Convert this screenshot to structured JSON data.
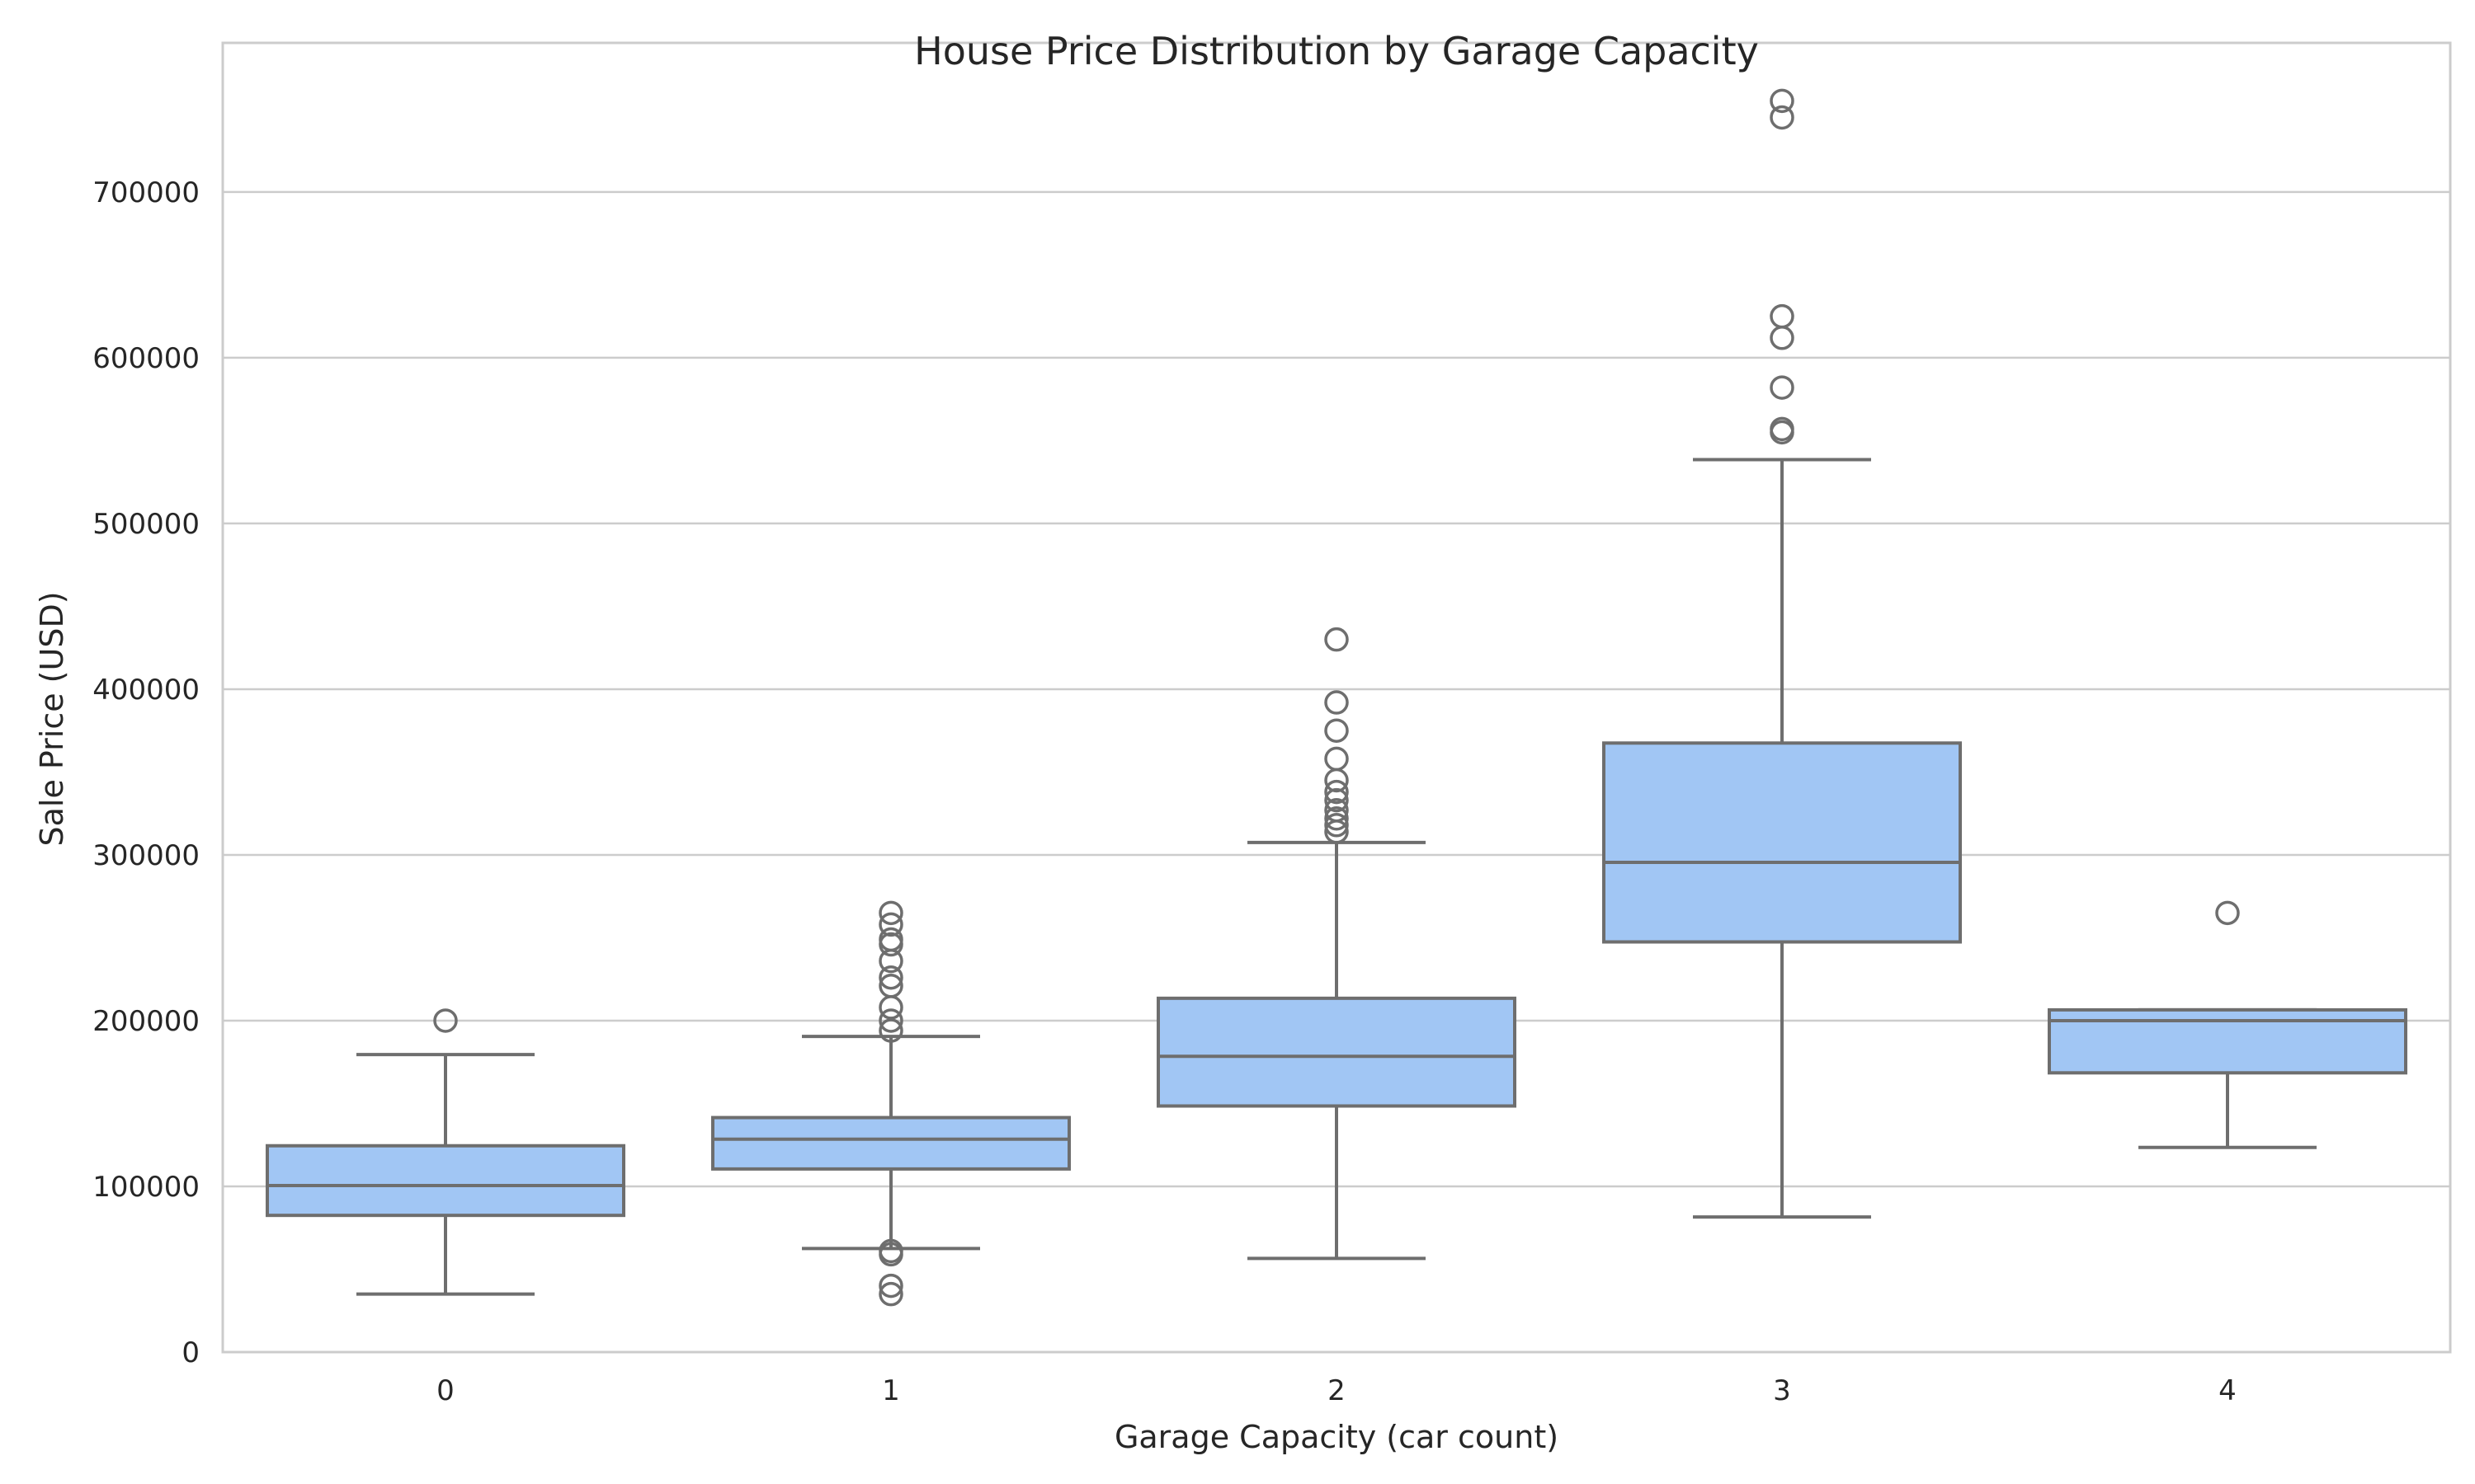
{
  "chart_data": {
    "type": "box",
    "title": "House Price Distribution by Garage Capacity",
    "xlabel": "Garage Capacity (car count)",
    "ylabel": "Sale Price (USD)",
    "ylim": [
      0,
      790000
    ],
    "yticks": [
      0,
      100000,
      200000,
      300000,
      400000,
      500000,
      600000,
      700000
    ],
    "categories": [
      "0",
      "1",
      "2",
      "3",
      "4"
    ],
    "grid": true,
    "colors": {
      "box_fill": "#a1c6f4",
      "line": "#6e6e6e",
      "grid": "#cccccc",
      "axis": "#cccccc"
    },
    "boxes": [
      {
        "category": "0",
        "whisker_low": 35000,
        "q1": 82500,
        "median": 100500,
        "q3": 124500,
        "whisker_high": 179500,
        "outliers": [
          200000
        ]
      },
      {
        "category": "1",
        "whisker_low": 62500,
        "q1": 110500,
        "median": 128500,
        "q3": 141500,
        "whisker_high": 190500,
        "outliers": [
          265000,
          258000,
          249000,
          246000,
          236000,
          226000,
          221000,
          208000,
          200000,
          194000,
          61000,
          59000,
          40000,
          35000
        ]
      },
      {
        "category": "2",
        "whisker_low": 56500,
        "q1": 148500,
        "median": 178500,
        "q3": 213500,
        "whisker_high": 307500,
        "outliers": [
          430000,
          392000,
          375000,
          358000,
          345000,
          338000,
          333000,
          327000,
          322000,
          318000,
          314000
        ]
      },
      {
        "category": "3",
        "whisker_low": 81500,
        "q1": 247500,
        "median": 295500,
        "q3": 367500,
        "whisker_high": 538500,
        "outliers": [
          755000,
          745000,
          625000,
          612000,
          582000,
          557000,
          555000
        ]
      },
      {
        "category": "4",
        "whisker_low": 123500,
        "q1": 168500,
        "median": 200000,
        "q3": 206500,
        "whisker_high": 206500,
        "outliers": [
          265000
        ]
      }
    ]
  }
}
